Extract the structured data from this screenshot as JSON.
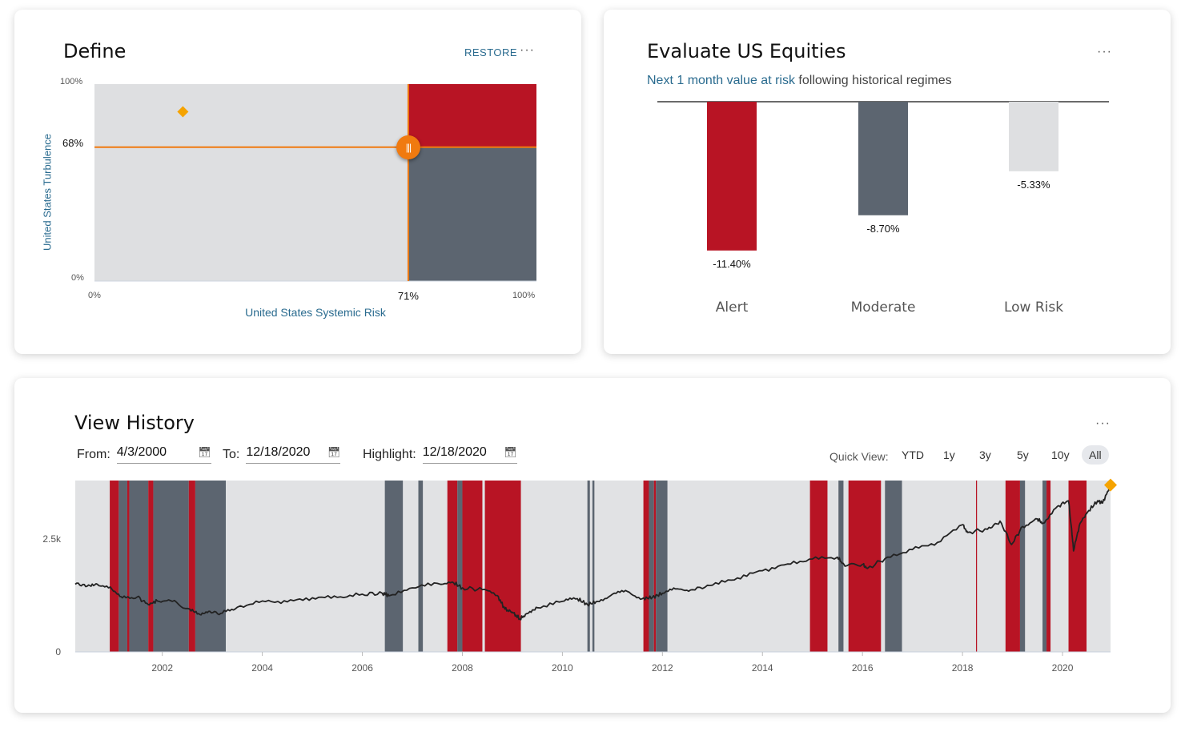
{
  "define": {
    "title": "Define",
    "restore_label": "RESTORE",
    "more_label": "···",
    "y_axis_label": "United States Turbulence",
    "x_axis_label": "United States Systemic Risk",
    "y_top_tick": "100%",
    "y_bottom_tick": "0%",
    "x_left_tick": "0%",
    "x_right_tick": "100%",
    "turbulence_threshold": 68,
    "turbulence_threshold_label": "68%",
    "systemic_threshold": 71,
    "systemic_threshold_label": "71%",
    "current_point": {
      "systemic": 20,
      "turbulence": 86
    },
    "colors": {
      "alert": "#b81424",
      "moderate": "#5c6570",
      "low": "#dedfe1",
      "line": "#f07a10",
      "marker": "#f5a300"
    }
  },
  "evaluate": {
    "title": "Evaluate US Equities",
    "more_label": "···",
    "subtitle_link": "Next 1 month value at risk",
    "subtitle_rest": " following historical regimes",
    "chart_data": {
      "type": "bar",
      "categories": [
        "Alert",
        "Moderate",
        "Low Risk"
      ],
      "values": [
        -11.4,
        -8.7,
        -5.33
      ],
      "value_labels": [
        "-11.40%",
        "-8.70%",
        "-5.33%"
      ],
      "colors": [
        "#b81424",
        "#5c6570",
        "#dedfe1"
      ],
      "ylim": [
        -13.5,
        0
      ]
    }
  },
  "history": {
    "title": "View History",
    "more_label": "···",
    "from_label": "From:",
    "from_value": "4/3/2000",
    "to_label": "To:",
    "to_value": "12/18/2020",
    "highlight_label": "Highlight:",
    "highlight_value": "12/18/2020",
    "quick_view_label": "Quick View:",
    "quick_view_options": [
      "YTD",
      "1y",
      "3y",
      "5y",
      "10y",
      "All"
    ],
    "quick_view_selected": "All",
    "chart_data": {
      "type": "line",
      "x_range": [
        2000.26,
        2020.96
      ],
      "y_ticks": [
        {
          "value": 0,
          "label": "0"
        },
        {
          "value": 2500,
          "label": "2.5k"
        }
      ],
      "ylim": [
        0,
        3800
      ],
      "x_ticks": [
        2002,
        2004,
        2006,
        2008,
        2010,
        2012,
        2014,
        2016,
        2018,
        2020
      ],
      "series": [
        {
          "points": [
            [
              2000.26,
              1500
            ],
            [
              2000.5,
              1460
            ],
            [
              2000.7,
              1500
            ],
            [
              2001.0,
              1380
            ],
            [
              2001.2,
              1200
            ],
            [
              2001.5,
              1220
            ],
            [
              2001.72,
              1050
            ],
            [
              2001.9,
              1130
            ],
            [
              2002.2,
              1120
            ],
            [
              2002.55,
              950
            ],
            [
              2002.75,
              830
            ],
            [
              2002.95,
              900
            ],
            [
              2003.2,
              860
            ],
            [
              2003.5,
              990
            ],
            [
              2004.0,
              1130
            ],
            [
              2004.5,
              1110
            ],
            [
              2005.0,
              1200
            ],
            [
              2005.5,
              1210
            ],
            [
              2006.0,
              1280
            ],
            [
              2006.4,
              1300
            ],
            [
              2006.55,
              1250
            ],
            [
              2007.0,
              1420
            ],
            [
              2007.5,
              1520
            ],
            [
              2007.8,
              1550
            ],
            [
              2008.0,
              1420
            ],
            [
              2008.4,
              1380
            ],
            [
              2008.7,
              1250
            ],
            [
              2008.85,
              950
            ],
            [
              2009.0,
              880
            ],
            [
              2009.15,
              730
            ],
            [
              2009.3,
              850
            ],
            [
              2009.5,
              980
            ],
            [
              2010.0,
              1120
            ],
            [
              2010.3,
              1180
            ],
            [
              2010.5,
              1050
            ],
            [
              2010.7,
              1120
            ],
            [
              2011.0,
              1280
            ],
            [
              2011.3,
              1340
            ],
            [
              2011.6,
              1180
            ],
            [
              2011.8,
              1210
            ],
            [
              2012.0,
              1300
            ],
            [
              2012.3,
              1400
            ],
            [
              2012.6,
              1380
            ],
            [
              2013.0,
              1480
            ],
            [
              2013.5,
              1640
            ],
            [
              2014.0,
              1800
            ],
            [
              2014.5,
              1950
            ],
            [
              2015.0,
              2060
            ],
            [
              2015.5,
              2100
            ],
            [
              2015.65,
              1900
            ],
            [
              2016.0,
              1940
            ],
            [
              2016.1,
              1850
            ],
            [
              2016.5,
              2100
            ],
            [
              2017.0,
              2270
            ],
            [
              2017.5,
              2430
            ],
            [
              2018.0,
              2820
            ],
            [
              2018.1,
              2650
            ],
            [
              2018.5,
              2720
            ],
            [
              2018.75,
              2900
            ],
            [
              2018.98,
              2380
            ],
            [
              2019.2,
              2780
            ],
            [
              2019.5,
              2950
            ],
            [
              2019.6,
              2850
            ],
            [
              2019.9,
              3230
            ],
            [
              2020.12,
              3350
            ],
            [
              2020.2,
              2500
            ],
            [
              2020.22,
              2240
            ],
            [
              2020.35,
              2850
            ],
            [
              2020.5,
              3100
            ],
            [
              2020.7,
              3350
            ],
            [
              2020.8,
              3300
            ],
            [
              2020.96,
              3700
            ]
          ]
        }
      ],
      "regimes": [
        {
          "from": 2000.95,
          "to": 2001.13,
          "kind": "alert"
        },
        {
          "from": 2001.13,
          "to": 2001.3,
          "kind": "moderate"
        },
        {
          "from": 2001.3,
          "to": 2001.34,
          "kind": "alert"
        },
        {
          "from": 2001.34,
          "to": 2001.72,
          "kind": "moderate"
        },
        {
          "from": 2001.72,
          "to": 2001.82,
          "kind": "alert"
        },
        {
          "from": 2001.82,
          "to": 2002.53,
          "kind": "moderate"
        },
        {
          "from": 2002.53,
          "to": 2002.66,
          "kind": "alert"
        },
        {
          "from": 2002.66,
          "to": 2003.27,
          "kind": "moderate"
        },
        {
          "from": 2006.45,
          "to": 2006.81,
          "kind": "moderate"
        },
        {
          "from": 2007.12,
          "to": 2007.21,
          "kind": "moderate"
        },
        {
          "from": 2007.7,
          "to": 2007.9,
          "kind": "alert"
        },
        {
          "from": 2007.9,
          "to": 2008.0,
          "kind": "moderate"
        },
        {
          "from": 2008.0,
          "to": 2008.4,
          "kind": "alert"
        },
        {
          "from": 2008.45,
          "to": 2009.17,
          "kind": "alert"
        },
        {
          "from": 2010.5,
          "to": 2010.55,
          "kind": "moderate"
        },
        {
          "from": 2010.6,
          "to": 2010.64,
          "kind": "moderate"
        },
        {
          "from": 2011.62,
          "to": 2011.73,
          "kind": "alert"
        },
        {
          "from": 2011.73,
          "to": 2011.83,
          "kind": "moderate"
        },
        {
          "from": 2011.83,
          "to": 2011.87,
          "kind": "alert"
        },
        {
          "from": 2011.87,
          "to": 2012.1,
          "kind": "moderate"
        },
        {
          "from": 2014.95,
          "to": 2015.3,
          "kind": "alert"
        },
        {
          "from": 2015.52,
          "to": 2015.62,
          "kind": "moderate"
        },
        {
          "from": 2015.72,
          "to": 2016.37,
          "kind": "alert"
        },
        {
          "from": 2016.45,
          "to": 2016.79,
          "kind": "moderate"
        },
        {
          "from": 2018.27,
          "to": 2018.29,
          "kind": "alert"
        },
        {
          "from": 2018.86,
          "to": 2019.15,
          "kind": "alert"
        },
        {
          "from": 2019.15,
          "to": 2019.25,
          "kind": "moderate"
        },
        {
          "from": 2019.6,
          "to": 2019.68,
          "kind": "moderate"
        },
        {
          "from": 2019.68,
          "to": 2019.76,
          "kind": "alert"
        },
        {
          "from": 2020.12,
          "to": 2020.48,
          "kind": "alert"
        }
      ],
      "colors": {
        "background": "#e1e2e4",
        "alert": "#b81424",
        "moderate": "#5c6570",
        "line": "#222222",
        "marker": "#f5a300"
      }
    }
  }
}
